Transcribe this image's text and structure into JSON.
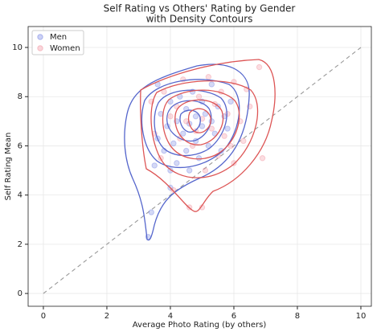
{
  "chart_data": {
    "type": "scatter",
    "title": "Self Rating vs Others' Rating by Gender",
    "subtitle": "with Density Contours",
    "x_label": "Average Photo Rating (by others)",
    "y_label": "Self Rating Mean",
    "xlim": [
      -0.48,
      10.33
    ],
    "ylim": [
      -0.52,
      10.85
    ],
    "xticks": [
      0,
      2,
      4,
      6,
      8,
      10
    ],
    "yticks": [
      0,
      2,
      4,
      6,
      8,
      10
    ],
    "grid": true,
    "legend": "upper left",
    "reference_line": {
      "x": [
        0,
        10
      ],
      "y": [
        0,
        10
      ]
    },
    "series": [
      {
        "name": "Men",
        "color": "#5566dd",
        "x": [
          3.3,
          3.4,
          3.5,
          3.6,
          3.7,
          3.8,
          3.9,
          4.0,
          4.0,
          4.1,
          4.2,
          4.2,
          4.3,
          4.4,
          4.5,
          4.5,
          4.6,
          4.7,
          4.8,
          4.8,
          4.9,
          5.0,
          5.0,
          5.1,
          5.2,
          5.3,
          5.3,
          5.4,
          5.5,
          5.6,
          5.7,
          5.8,
          3.6,
          4.0,
          4.6,
          5.9
        ],
        "values": [
          2.3,
          3.3,
          5.2,
          6.3,
          7.3,
          5.8,
          6.8,
          4.3,
          7.8,
          6.1,
          5.3,
          7.0,
          8.0,
          6.5,
          7.5,
          5.8,
          6.9,
          8.2,
          7.2,
          6.2,
          5.5,
          7.8,
          6.8,
          7.3,
          6.0,
          8.5,
          7.0,
          6.5,
          7.6,
          5.8,
          7.2,
          6.7,
          8.5,
          5.0,
          5.0,
          7.8
        ]
      },
      {
        "name": "Women",
        "color": "#ee7788",
        "x": [
          3.4,
          3.5,
          3.7,
          3.8,
          4.0,
          4.1,
          4.3,
          4.4,
          4.5,
          4.6,
          4.7,
          4.9,
          5.0,
          5.0,
          5.1,
          5.2,
          5.3,
          5.4,
          5.5,
          5.6,
          5.7,
          5.8,
          6.0,
          6.0,
          6.2,
          6.4,
          6.5,
          6.8,
          6.9,
          4.2,
          4.8,
          5.9,
          6.3
        ],
        "values": [
          7.8,
          6.5,
          5.5,
          8.2,
          7.2,
          4.2,
          6.3,
          8.7,
          7.0,
          3.5,
          6.0,
          8.0,
          3.5,
          7.1,
          5.0,
          8.8,
          6.7,
          7.7,
          5.6,
          8.2,
          6.4,
          7.3,
          8.6,
          5.3,
          7.0,
          8.3,
          7.6,
          9.2,
          5.5,
          7.6,
          6.6,
          6.0,
          6.2
        ]
      }
    ]
  }
}
